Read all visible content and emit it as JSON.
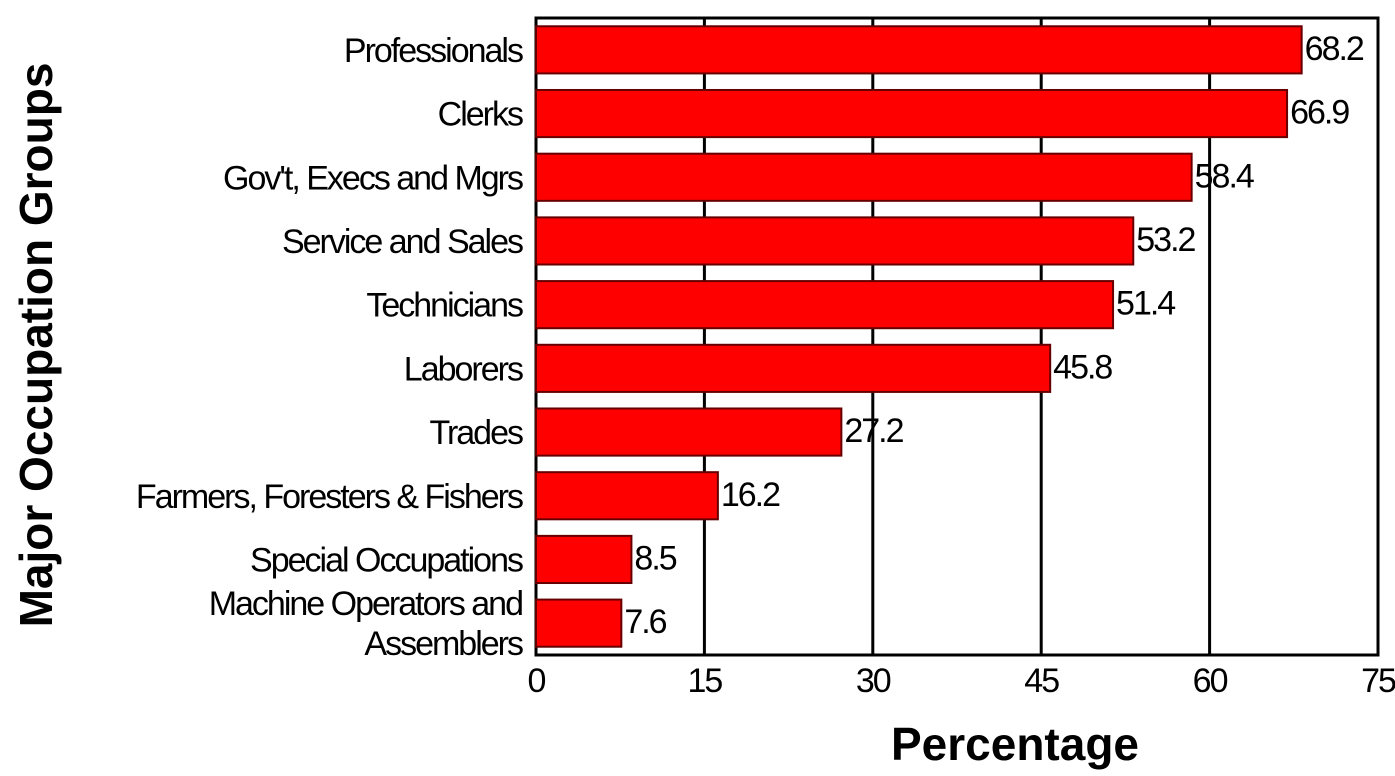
{
  "chart_data": {
    "type": "bar",
    "orientation": "horizontal",
    "title": "",
    "xlabel": "Percentage",
    "ylabel": "Major Occupation Groups",
    "categories": [
      "Professionals",
      "Clerks",
      "Gov't, Execs and Mgrs",
      "Service and Sales",
      "Technicians",
      "Laborers",
      "Trades",
      "Farmers, Foresters & Fishers",
      "Special Occupations",
      "Machine Operators and Assemblers"
    ],
    "category_lines": [
      [
        "Professionals"
      ],
      [
        "Clerks"
      ],
      [
        "Gov't, Execs and Mgrs"
      ],
      [
        "Service and Sales"
      ],
      [
        "Technicians"
      ],
      [
        "Laborers"
      ],
      [
        "Trades"
      ],
      [
        "Farmers, Foresters & Fishers"
      ],
      [
        "Special Occupations"
      ],
      [
        "Machine Operators and",
        "Assemblers"
      ]
    ],
    "values": [
      68.2,
      66.9,
      58.4,
      53.2,
      51.4,
      45.8,
      27.2,
      16.2,
      8.5,
      7.6
    ],
    "value_labels": [
      "68.2",
      "66.9",
      "58.4",
      "53.2",
      "51.4",
      "45.8",
      "27.2",
      "16.2",
      "8.5",
      "7.6"
    ],
    "xlim": [
      0,
      75
    ],
    "xticks": [
      0,
      15,
      30,
      45,
      60,
      75
    ],
    "xtick_labels": [
      "0",
      "15",
      "30",
      "45",
      "60",
      "75"
    ],
    "grid": "vertical",
    "legend": "none",
    "bar_color": "#ff0000",
    "bar_edge_color": "#660000",
    "grid_color": "#000000"
  }
}
